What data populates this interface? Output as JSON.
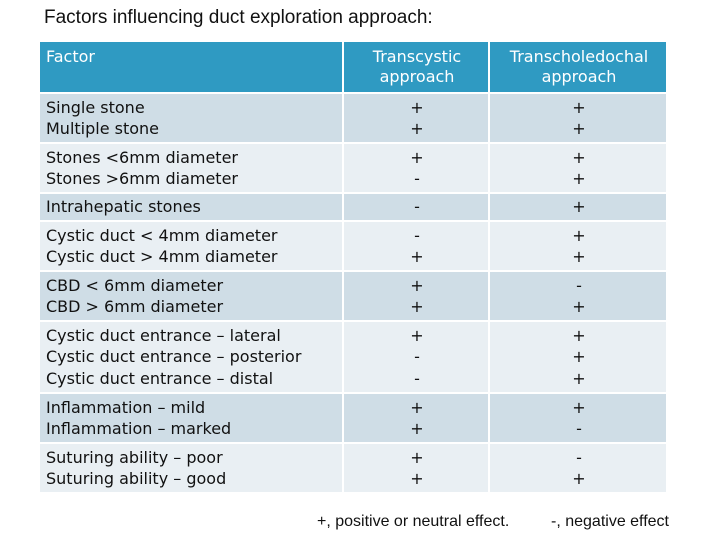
{
  "title": "Factors influencing duct exploration approach:",
  "table": {
    "headers": [
      "Factor",
      "Transcystic approach",
      "Transcholedochal approach"
    ],
    "rows": [
      {
        "factor": [
          "Single stone",
          "Multiple stone"
        ],
        "transcystic": [
          "+",
          "+"
        ],
        "transcholedochal": [
          "+",
          "+"
        ]
      },
      {
        "factor": [
          "Stones <6mm diameter",
          "Stones >6mm diameter"
        ],
        "transcystic": [
          "+",
          "-"
        ],
        "transcholedochal": [
          "+",
          "+"
        ]
      },
      {
        "factor": [
          "Intrahepatic stones"
        ],
        "transcystic": [
          "-"
        ],
        "transcholedochal": [
          "+"
        ]
      },
      {
        "factor": [
          "Cystic duct < 4mm diameter",
          "Cystic duct > 4mm diameter"
        ],
        "transcystic": [
          "-",
          "+"
        ],
        "transcholedochal": [
          "+",
          "+"
        ]
      },
      {
        "factor": [
          "CBD < 6mm diameter",
          "CBD > 6mm diameter"
        ],
        "transcystic": [
          "+",
          "+"
        ],
        "transcholedochal": [
          "-",
          "+"
        ]
      },
      {
        "factor": [
          "Cystic duct entrance – lateral",
          "Cystic duct entrance – posterior",
          "Cystic duct entrance – distal"
        ],
        "transcystic": [
          "+",
          "-",
          "-"
        ],
        "transcholedochal": [
          "+",
          "+",
          "+"
        ]
      },
      {
        "factor": [
          "Inflammation – mild",
          "Inflammation – marked"
        ],
        "transcystic": [
          "+",
          "+"
        ],
        "transcholedochal": [
          "+",
          "-"
        ]
      },
      {
        "factor": [
          "Suturing ability – poor",
          "Suturing ability – good"
        ],
        "transcystic": [
          "+",
          "+"
        ],
        "transcholedochal": [
          "-",
          "+"
        ]
      }
    ]
  },
  "footnote": {
    "positive": "+, positive or neutral effect.",
    "negative": "-, negative effect"
  },
  "colors": {
    "header_bg": "#2f9ac2",
    "row_odd_bg": "#cfdde6",
    "row_even_bg": "#e9eff3"
  }
}
